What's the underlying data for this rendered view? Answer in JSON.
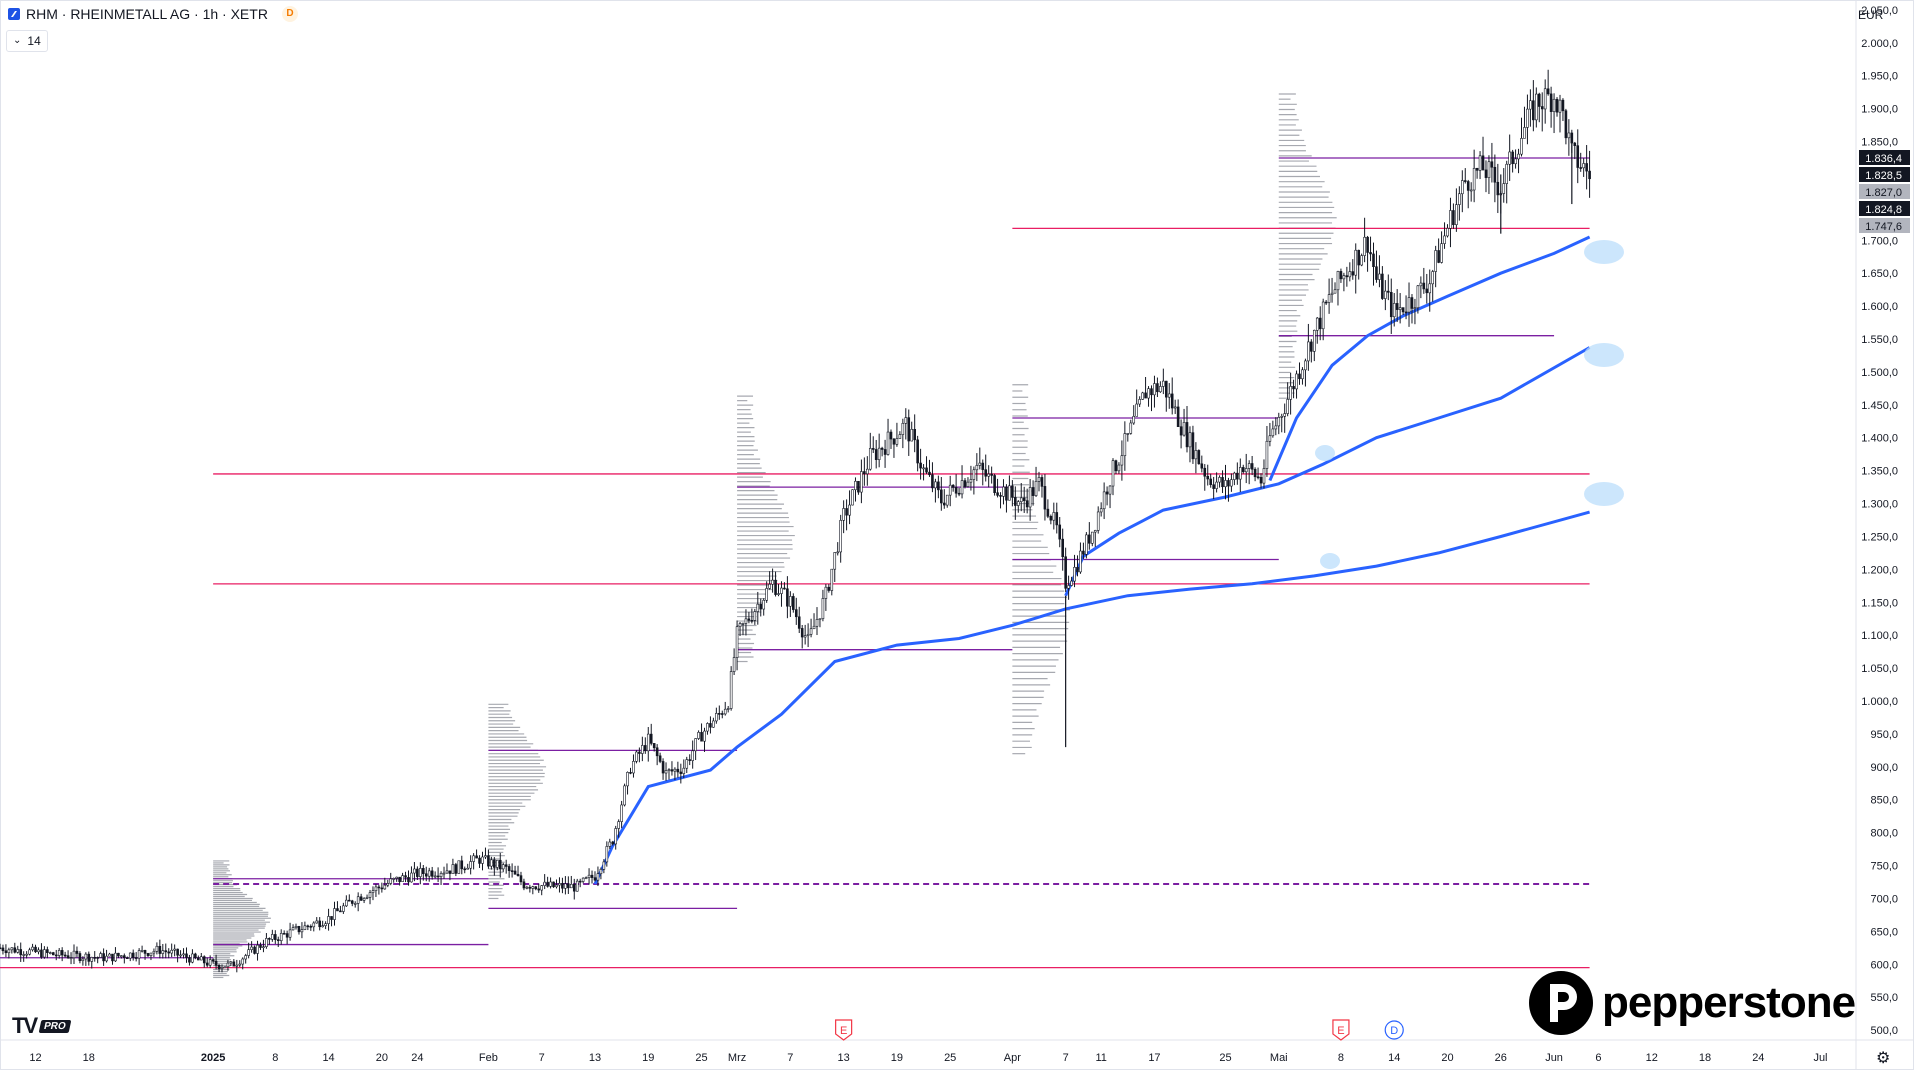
{
  "header": {
    "title": "RHM · RHEINMETALL AG · 1h · XETR",
    "delay_badge": "D",
    "indicator_label": "14",
    "currency": "EUR"
  },
  "branding": {
    "tv_logo": "TV",
    "tv_pro": "PRO",
    "broker": "pepperstone"
  },
  "icons": {
    "settings": "gear-icon",
    "earnings": "E",
    "dividend": "D"
  },
  "colors": {
    "up": "#26a69a",
    "candle": "#131722",
    "vwap": "#2962ff",
    "level_pink": "#e91e63",
    "level_purple": "#7b1fa2",
    "poc": "#f23645",
    "value_area": "#2962ff"
  },
  "chart_data": {
    "type": "candlestick",
    "title": "RHM · RHEINMETALL AG · 1h · XETR",
    "xlabel": "",
    "ylabel": "EUR",
    "ylim": [
      485,
      2065
    ],
    "xlim": [
      "2024-12-08",
      "2025-07-05"
    ],
    "y_ticks": [
      500,
      550,
      600,
      650,
      700,
      750,
      800,
      850,
      900,
      950,
      1000,
      1050,
      1100,
      1150,
      1200,
      1250,
      1300,
      1350,
      1400,
      1450,
      1500,
      1550,
      1600,
      1650,
      1700,
      1750,
      1800,
      1850,
      1900,
      1950,
      2000,
      2050
    ],
    "y_tick_labels": [
      "500,0",
      "550,0",
      "600,0",
      "650,0",
      "700,0",
      "750,0",
      "800,0",
      "850,0",
      "900,0",
      "950,0",
      "1.000,0",
      "1.050,0",
      "1.100,0",
      "1.150,0",
      "1.200,0",
      "1.250,0",
      "1.300,0",
      "1.350,0",
      "1.400,0",
      "1.450,0",
      "1.500,0",
      "1.550,0",
      "1.600,0",
      "1.650,0",
      "1.700,0",
      "1.750,0",
      "1.800,0",
      "1.850,0",
      "1.900,0",
      "1.950,0",
      "2.000,0",
      "2.050,0"
    ],
    "x_ticks": [
      {
        "date": "2024-12-12",
        "label": "12"
      },
      {
        "date": "2024-12-18",
        "label": "18"
      },
      {
        "date": "2025-01-01",
        "label": "2025",
        "bold": true
      },
      {
        "date": "2025-01-08",
        "label": "8"
      },
      {
        "date": "2025-01-14",
        "label": "14"
      },
      {
        "date": "2025-01-20",
        "label": "20"
      },
      {
        "date": "2025-01-24",
        "label": "24"
      },
      {
        "date": "2025-02-01",
        "label": "Feb"
      },
      {
        "date": "2025-02-07",
        "label": "7"
      },
      {
        "date": "2025-02-13",
        "label": "13"
      },
      {
        "date": "2025-02-19",
        "label": "19"
      },
      {
        "date": "2025-02-25",
        "label": "25"
      },
      {
        "date": "2025-03-01",
        "label": "Mrz"
      },
      {
        "date": "2025-03-07",
        "label": "7"
      },
      {
        "date": "2025-03-13",
        "label": "13"
      },
      {
        "date": "2025-03-19",
        "label": "19"
      },
      {
        "date": "2025-03-25",
        "label": "25"
      },
      {
        "date": "2025-04-01",
        "label": "Apr"
      },
      {
        "date": "2025-04-07",
        "label": "7"
      },
      {
        "date": "2025-04-11",
        "label": "11"
      },
      {
        "date": "2025-04-17",
        "label": "17"
      },
      {
        "date": "2025-04-25",
        "label": "25"
      },
      {
        "date": "2025-05-01",
        "label": "Mai"
      },
      {
        "date": "2025-05-08",
        "label": "8"
      },
      {
        "date": "2025-05-14",
        "label": "14"
      },
      {
        "date": "2025-05-20",
        "label": "20"
      },
      {
        "date": "2025-05-26",
        "label": "26"
      },
      {
        "date": "2025-06-01",
        "label": "Jun"
      },
      {
        "date": "2025-06-06",
        "label": "6"
      },
      {
        "date": "2025-06-12",
        "label": "12"
      },
      {
        "date": "2025-06-18",
        "label": "18"
      },
      {
        "date": "2025-06-24",
        "label": "24"
      },
      {
        "date": "2025-07-01",
        "label": "Jul"
      }
    ],
    "price_path": [
      [
        "2024-12-08",
        625
      ],
      [
        "2024-12-14",
        615
      ],
      [
        "2024-12-20",
        610
      ],
      [
        "2024-12-26",
        622
      ],
      [
        "2025-01-01",
        600
      ],
      [
        "2025-01-03",
        598
      ],
      [
        "2025-01-07",
        635
      ],
      [
        "2025-01-10",
        650
      ],
      [
        "2025-01-14",
        670
      ],
      [
        "2025-01-17",
        700
      ],
      [
        "2025-01-21",
        725
      ],
      [
        "2025-01-24",
        738
      ],
      [
        "2025-01-28",
        745
      ],
      [
        "2025-01-31",
        760
      ],
      [
        "2025-02-03",
        745
      ],
      [
        "2025-02-05",
        722
      ],
      [
        "2025-02-08",
        718
      ],
      [
        "2025-02-11",
        718
      ],
      [
        "2025-02-13",
        735
      ],
      [
        "2025-02-15",
        790
      ],
      [
        "2025-02-17",
        900
      ],
      [
        "2025-02-19",
        940
      ],
      [
        "2025-02-21",
        890
      ],
      [
        "2025-02-23",
        900
      ],
      [
        "2025-02-25",
        950
      ],
      [
        "2025-02-27",
        980
      ],
      [
        "2025-02-28",
        1000
      ],
      [
        "2025-03-01",
        1100
      ],
      [
        "2025-03-03",
        1140
      ],
      [
        "2025-03-05",
        1180
      ],
      [
        "2025-03-07",
        1150
      ],
      [
        "2025-03-09",
        1090
      ],
      [
        "2025-03-11",
        1160
      ],
      [
        "2025-03-13",
        1280
      ],
      [
        "2025-03-16",
        1370
      ],
      [
        "2025-03-18",
        1395
      ],
      [
        "2025-03-20",
        1420
      ],
      [
        "2025-03-22",
        1350
      ],
      [
        "2025-03-24",
        1305
      ],
      [
        "2025-03-26",
        1330
      ],
      [
        "2025-03-28",
        1355
      ],
      [
        "2025-03-30",
        1330
      ],
      [
        "2025-04-02",
        1300
      ],
      [
        "2025-04-04",
        1330
      ],
      [
        "2025-04-06",
        1260
      ],
      [
        "2025-04-07",
        1180
      ],
      [
        "2025-04-08",
        1200
      ],
      [
        "2025-04-10",
        1260
      ],
      [
        "2025-04-12",
        1340
      ],
      [
        "2025-04-14",
        1400
      ],
      [
        "2025-04-16",
        1470
      ],
      [
        "2025-04-18",
        1480
      ],
      [
        "2025-04-20",
        1420
      ],
      [
        "2025-04-23",
        1340
      ],
      [
        "2025-04-25",
        1325
      ],
      [
        "2025-04-27",
        1360
      ],
      [
        "2025-04-29",
        1335
      ],
      [
        "2025-04-30",
        1400
      ],
      [
        "2025-05-02",
        1460
      ],
      [
        "2025-05-05",
        1560
      ],
      [
        "2025-05-07",
        1620
      ],
      [
        "2025-05-09",
        1660
      ],
      [
        "2025-05-11",
        1700
      ],
      [
        "2025-05-12",
        1640
      ],
      [
        "2025-05-14",
        1590
      ],
      [
        "2025-05-16",
        1610
      ],
      [
        "2025-05-18",
        1640
      ],
      [
        "2025-05-20",
        1720
      ],
      [
        "2025-05-22",
        1790
      ],
      [
        "2025-05-24",
        1810
      ],
      [
        "2025-05-26",
        1780
      ],
      [
        "2025-05-28",
        1850
      ],
      [
        "2025-05-30",
        1910
      ],
      [
        "2025-06-01",
        1920
      ],
      [
        "2025-06-02",
        1890
      ],
      [
        "2025-06-03",
        1830
      ],
      [
        "2025-06-05",
        1800
      ]
    ],
    "vwap_series": [
      [
        [
          "2025-02-13",
          722
        ],
        [
          "2025-02-15",
          780
        ],
        [
          "2025-02-19",
          870
        ],
        [
          "2025-02-26",
          895
        ],
        [
          "2025-03-01",
          930
        ],
        [
          "2025-03-06",
          980
        ],
        [
          "2025-03-12",
          1060
        ],
        [
          "2025-03-19",
          1085
        ],
        [
          "2025-03-26",
          1095
        ],
        [
          "2025-04-01",
          1115
        ],
        [
          "2025-04-07",
          1140
        ],
        [
          "2025-04-14",
          1160
        ],
        [
          "2025-04-21",
          1170
        ],
        [
          "2025-04-28",
          1178
        ],
        [
          "2025-05-05",
          1190
        ],
        [
          "2025-05-12",
          1205
        ],
        [
          "2025-05-19",
          1225
        ],
        [
          "2025-05-26",
          1250
        ],
        [
          "2025-06-05",
          1287
        ]
      ],
      [
        [
          "2025-04-07",
          1160
        ],
        [
          "2025-04-09",
          1220
        ],
        [
          "2025-04-13",
          1255
        ],
        [
          "2025-04-18",
          1290
        ],
        [
          "2025-04-25",
          1310
        ],
        [
          "2025-05-01",
          1330
        ],
        [
          "2025-05-06",
          1360
        ],
        [
          "2025-05-12",
          1400
        ],
        [
          "2025-05-19",
          1430
        ],
        [
          "2025-05-26",
          1460
        ],
        [
          "2025-06-05",
          1537
        ]
      ],
      [
        [
          "2025-04-30",
          1335
        ],
        [
          "2025-05-03",
          1430
        ],
        [
          "2025-05-07",
          1510
        ],
        [
          "2025-05-11",
          1555
        ],
        [
          "2025-05-15",
          1585
        ],
        [
          "2025-05-20",
          1615
        ],
        [
          "2025-05-26",
          1650
        ],
        [
          "2025-06-01",
          1680
        ],
        [
          "2025-06-05",
          1705
        ]
      ]
    ],
    "levels": [
      {
        "color": "pink",
        "price": 1345,
        "from": "2025-01-01",
        "to": "2025-06-05"
      },
      {
        "color": "pink",
        "price": 1178,
        "from": "2025-01-01",
        "to": "2025-06-05"
      },
      {
        "color": "pink",
        "price": 1718,
        "from": "2025-04-01",
        "to": "2025-06-05"
      },
      {
        "color": "pink",
        "price": 595,
        "from": "2024-12-08",
        "to": "2025-06-05"
      },
      {
        "color": "purple",
        "price": 722,
        "from": "2025-01-01",
        "to": "2025-06-05",
        "dashed": true
      },
      {
        "color": "purple",
        "price": 1430,
        "from": "2025-04-01",
        "to": "2025-05-01"
      },
      {
        "color": "purple",
        "price": 1215,
        "from": "2025-04-01",
        "to": "2025-05-01"
      },
      {
        "color": "purple",
        "price": 1555,
        "from": "2025-05-01",
        "to": "2025-06-01"
      },
      {
        "color": "purple",
        "price": 1825,
        "from": "2025-05-01",
        "to": "2025-06-05"
      },
      {
        "color": "purple",
        "price": 1325,
        "from": "2025-03-01",
        "to": "2025-04-01"
      },
      {
        "color": "purple",
        "price": 1078,
        "from": "2025-03-01",
        "to": "2025-04-01"
      },
      {
        "color": "purple",
        "price": 925,
        "from": "2025-02-01",
        "to": "2025-03-01"
      },
      {
        "color": "purple",
        "price": 685,
        "from": "2025-02-01",
        "to": "2025-03-01"
      },
      {
        "color": "purple",
        "price": 730,
        "from": "2025-01-01",
        "to": "2025-02-01"
      },
      {
        "color": "purple",
        "price": 630,
        "from": "2025-01-01",
        "to": "2025-02-01"
      },
      {
        "color": "purple",
        "price": 610,
        "from": "2024-12-08",
        "to": "2025-01-01"
      }
    ],
    "price_labels": [
      {
        "text": "1.836,4",
        "price": 1836.4,
        "style": "dark"
      },
      {
        "text": "1.828,5",
        "price": 1828.5,
        "style": "dark"
      },
      {
        "text": "1.827,0",
        "price": 1827.0,
        "style": "grey"
      },
      {
        "text": "1.824,8",
        "price": 1824.8,
        "style": "dark"
      },
      {
        "text": "1.747,6",
        "price": 1747.6,
        "style": "grey"
      }
    ],
    "events": [
      {
        "date": "2025-03-13",
        "type": "E"
      },
      {
        "date": "2025-05-08",
        "type": "E"
      },
      {
        "date": "2025-05-14",
        "type": "D"
      }
    ]
  }
}
